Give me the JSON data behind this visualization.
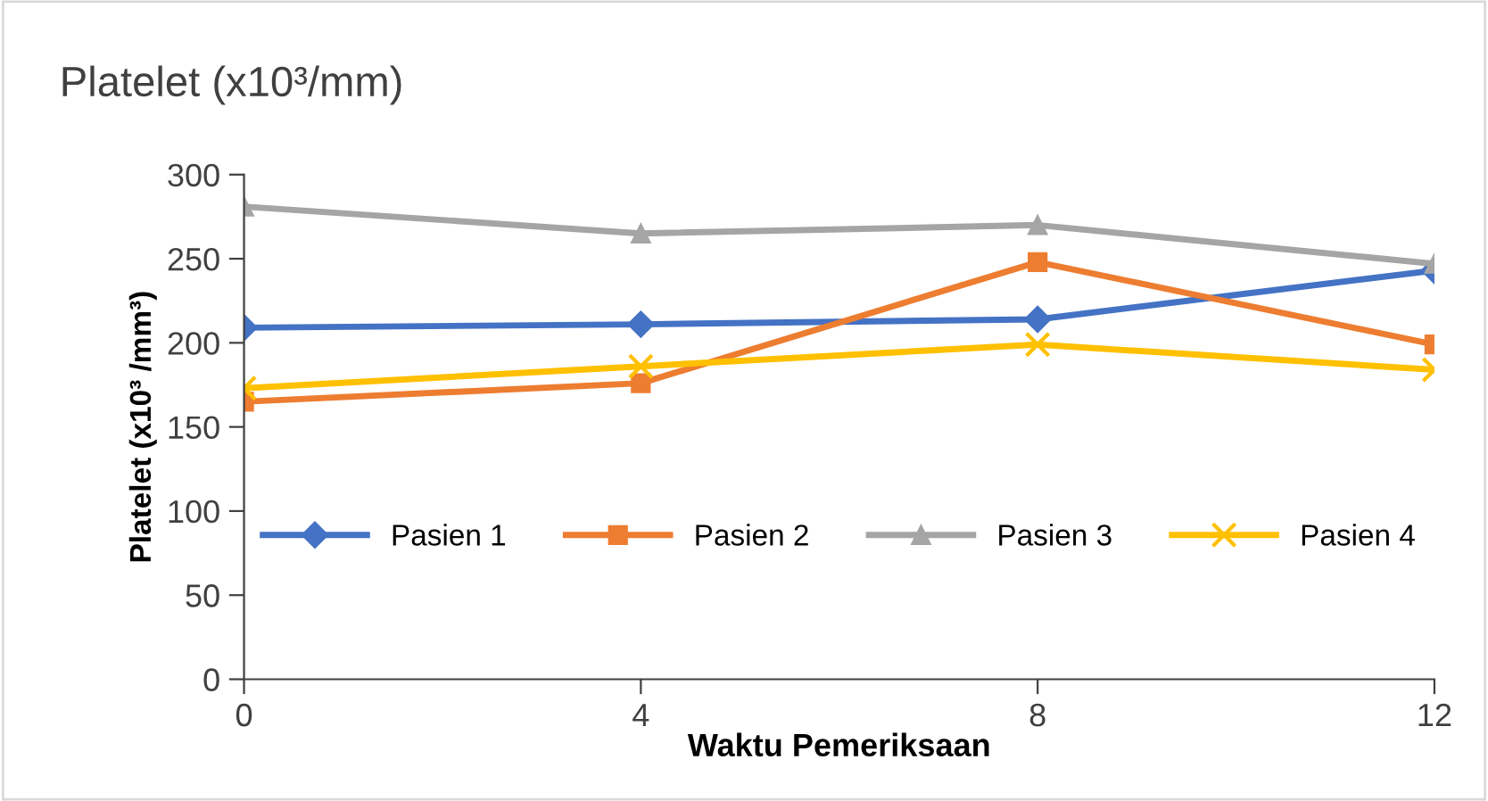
{
  "chart_data": {
    "type": "line",
    "title": "Platelet (x10³/mm)",
    "xlabel": "Waktu Pemeriksaan",
    "ylabel": "Platelet (x10³ /mm³)",
    "x": [
      0,
      4,
      8,
      12
    ],
    "xlim": [
      0,
      12
    ],
    "xticks": [
      0,
      4,
      8,
      12
    ],
    "ylim": [
      0,
      300
    ],
    "yticks": [
      0,
      50,
      100,
      150,
      200,
      250,
      300
    ],
    "grid": false,
    "legend": "bottom",
    "line_style": "solid",
    "series": [
      {
        "name": "Pasien 1",
        "color": "#4472c4",
        "marker": "diamond",
        "values": [
          209,
          211,
          214,
          243
        ]
      },
      {
        "name": "Pasien 2",
        "color": "#ed7d31",
        "marker": "square",
        "values": [
          165,
          176,
          248,
          199
        ]
      },
      {
        "name": "Pasien 3",
        "color": "#a5a5a5",
        "marker": "triangle",
        "values": [
          281,
          265,
          270,
          247
        ]
      },
      {
        "name": "Pasien 4",
        "color": "#ffc000",
        "marker": "cross",
        "values": [
          173,
          186,
          199,
          184
        ]
      }
    ]
  }
}
